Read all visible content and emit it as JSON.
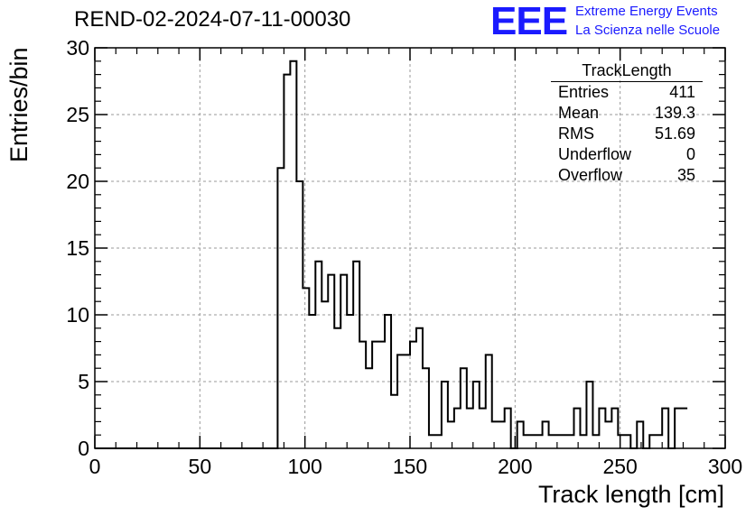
{
  "header": {
    "title": "REND-02-2024-07-11-00030",
    "logo_text": "EEE",
    "logo_line1": "Extreme Energy Events",
    "logo_line2": "La Scienza nelle Scuole"
  },
  "stats_box": {
    "title": "TrackLength",
    "rows": [
      {
        "key": "Entries",
        "value": "411"
      },
      {
        "key": "Mean",
        "value": "139.3"
      },
      {
        "key": "RMS",
        "value": "51.69"
      },
      {
        "key": "Underflow",
        "value": "0"
      },
      {
        "key": "Overflow",
        "value": "35"
      }
    ]
  },
  "chart_data": {
    "type": "bar",
    "title": "REND-02-2024-07-11-00030",
    "xlabel": "Track length [cm]",
    "ylabel": "Entries/bin",
    "xlim": [
      0,
      300
    ],
    "ylim": [
      0,
      30
    ],
    "grid": true,
    "x_ticks": [
      0,
      50,
      100,
      150,
      200,
      250,
      300
    ],
    "y_ticks": [
      0,
      5,
      10,
      15,
      20,
      25,
      30
    ],
    "bin_width": 3,
    "bin_edges_start": 0,
    "values": [
      0,
      0,
      0,
      0,
      0,
      0,
      0,
      0,
      0,
      0,
      0,
      0,
      0,
      0,
      0,
      0,
      0,
      0,
      0,
      0,
      0,
      0,
      0,
      0,
      0,
      0,
      0,
      0,
      0,
      21,
      28,
      29,
      20,
      12,
      10,
      14,
      11,
      13,
      9,
      13,
      10,
      14,
      8,
      6,
      8,
      8,
      10,
      4,
      7,
      7,
      8,
      9,
      6,
      1,
      1,
      5,
      2,
      3,
      6,
      3,
      5,
      3,
      7,
      2,
      2,
      3,
      0,
      2,
      1,
      1,
      1,
      2,
      1,
      1,
      1,
      1,
      3,
      1,
      5,
      1,
      3,
      2,
      3,
      1,
      1,
      0,
      2,
      0,
      1,
      1,
      3,
      0,
      3,
      3
    ],
    "color_colors": {
      "line": "#000000",
      "grid": "#999999"
    }
  }
}
